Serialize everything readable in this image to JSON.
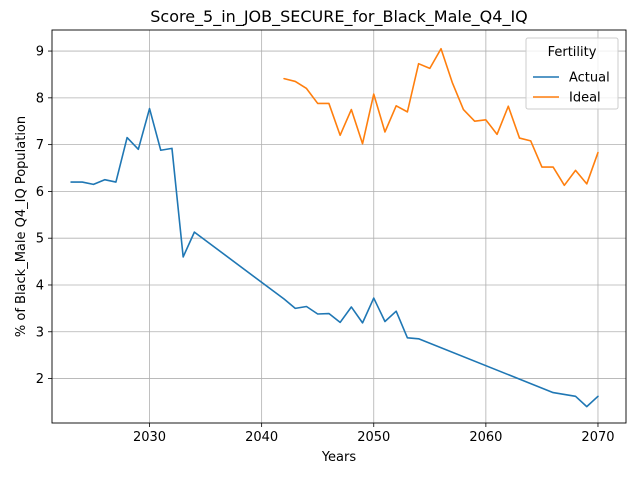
{
  "chart_data": {
    "type": "line",
    "title": "Score_5_in_JOB_SECURE_for_Black_Male_Q4_IQ",
    "xlabel": "Years",
    "ylabel": "% of Black_Male Q4_IQ Population",
    "xlim": [
      2021.3,
      2072.5
    ],
    "ylim": [
      1.05,
      9.45
    ],
    "xticks": [
      2030,
      2040,
      2050,
      2060,
      2070
    ],
    "yticks": [
      2,
      3,
      4,
      5,
      6,
      7,
      8,
      9
    ],
    "grid": true,
    "legend": {
      "title": "Fertility",
      "position": "top-right"
    },
    "series": [
      {
        "name": "Actual",
        "color": "#1f77b4",
        "points": [
          [
            2023,
            6.2
          ],
          [
            2024,
            6.2
          ],
          [
            2025,
            6.15
          ],
          [
            2026,
            6.25
          ],
          [
            2027,
            6.2
          ],
          [
            2028,
            7.15
          ],
          [
            2029,
            6.9
          ],
          [
            2030,
            7.77
          ],
          [
            2031,
            6.88
          ],
          [
            2032,
            6.92
          ],
          [
            2033,
            4.6
          ],
          [
            2034,
            5.13
          ],
          [
            2042,
            3.7
          ],
          [
            2043,
            3.5
          ],
          [
            2044,
            3.54
          ],
          [
            2045,
            3.38
          ],
          [
            2046,
            3.39
          ],
          [
            2047,
            3.2
          ],
          [
            2048,
            3.53
          ],
          [
            2049,
            3.19
          ],
          [
            2050,
            3.72
          ],
          [
            2051,
            3.22
          ],
          [
            2052,
            3.44
          ],
          [
            2053,
            2.87
          ],
          [
            2054,
            2.85
          ],
          [
            2066,
            1.7
          ],
          [
            2068,
            1.62
          ],
          [
            2069,
            1.4
          ],
          [
            2070,
            1.62
          ]
        ]
      },
      {
        "name": "Ideal",
        "color": "#ff7f0e",
        "points": [
          [
            2042,
            8.41
          ],
          [
            2043,
            8.35
          ],
          [
            2044,
            8.2
          ],
          [
            2045,
            7.88
          ],
          [
            2046,
            7.88
          ],
          [
            2047,
            7.2
          ],
          [
            2048,
            7.75
          ],
          [
            2049,
            7.02
          ],
          [
            2050,
            8.08
          ],
          [
            2051,
            7.27
          ],
          [
            2052,
            7.83
          ],
          [
            2053,
            7.7
          ],
          [
            2054,
            8.73
          ],
          [
            2055,
            8.63
          ],
          [
            2056,
            9.05
          ],
          [
            2057,
            8.33
          ],
          [
            2058,
            7.75
          ],
          [
            2059,
            7.5
          ],
          [
            2060,
            7.53
          ],
          [
            2061,
            7.22
          ],
          [
            2062,
            7.82
          ],
          [
            2063,
            7.14
          ],
          [
            2064,
            7.08
          ],
          [
            2065,
            6.52
          ],
          [
            2066,
            6.52
          ],
          [
            2067,
            6.13
          ],
          [
            2068,
            6.45
          ],
          [
            2069,
            6.16
          ],
          [
            2070,
            6.83
          ]
        ]
      }
    ]
  }
}
